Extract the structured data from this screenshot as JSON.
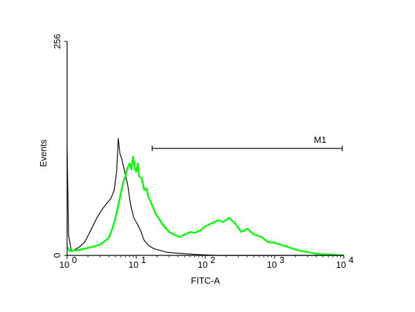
{
  "chart_data": {
    "type": "line",
    "title": "",
    "xlabel": "FITC-A",
    "ylabel": "Events",
    "x_scale": "log",
    "xlim": [
      1,
      10000
    ],
    "ylim": [
      0,
      256
    ],
    "x_ticks": [
      {
        "base": "10",
        "exp": "0",
        "value": 1
      },
      {
        "base": "10",
        "exp": "1",
        "value": 10
      },
      {
        "base": "10",
        "exp": "2",
        "value": 100
      },
      {
        "base": "10",
        "exp": "3",
        "value": 1000
      },
      {
        "base": "10",
        "exp": "4",
        "value": 10000
      }
    ],
    "y_ticks": [
      {
        "label": "0",
        "value": 0
      },
      {
        "label": "256",
        "value": 256
      }
    ],
    "grid": false,
    "colors": {
      "control": "#000000",
      "sample": "#00ff00",
      "axis": "#000000"
    },
    "marker": {
      "label": "M1",
      "x_start": 17,
      "x_end": 9500,
      "y": 128
    },
    "series": [
      {
        "color": "#000000",
        "x": [
          1,
          1.05,
          1.15,
          1.3,
          1.5,
          1.8,
          2.2,
          2.7,
          3.2,
          3.8,
          4.3,
          4.8,
          5.2,
          5.5,
          5.8,
          6.2,
          6.8,
          7.5,
          8.3,
          9.2,
          10.3,
          11.5,
          13,
          15,
          18,
          22,
          27,
          35,
          50,
          80,
          150,
          400,
          1000,
          10000
        ],
        "values": [
          130,
          25,
          5,
          7,
          10,
          16,
          30,
          45,
          55,
          63,
          68,
          78,
          100,
          140,
          122,
          115,
          100,
          85,
          60,
          45,
          38,
          30,
          18,
          12,
          8,
          6,
          4,
          3,
          2,
          1,
          0,
          0,
          0,
          0
        ]
      },
      {
        "color": "#00ff00",
        "x": [
          1,
          1.1,
          1.3,
          1.6,
          2,
          2.5,
          3,
          3.5,
          4,
          4.5,
          5,
          5.5,
          6,
          6.5,
          7,
          7.5,
          8,
          8.5,
          9,
          9.5,
          10,
          10.5,
          11,
          12,
          13,
          14,
          15,
          17,
          19,
          22,
          25,
          30,
          35,
          42,
          50,
          60,
          70,
          85,
          100,
          120,
          150,
          180,
          220,
          270,
          330,
          400,
          500,
          650,
          800,
          1000,
          1300,
          1700,
          2200,
          3000,
          4000,
          6000,
          10000
        ],
        "values": [
          10,
          5,
          6,
          7,
          9,
          11,
          13,
          17,
          21,
          32,
          45,
          60,
          75,
          88,
          95,
          105,
          110,
          103,
          118,
          105,
          100,
          110,
          95,
          92,
          78,
          80,
          70,
          60,
          50,
          42,
          35,
          28,
          25,
          22,
          25,
          28,
          27,
          30,
          35,
          38,
          42,
          40,
          45,
          38,
          28,
          32,
          25,
          22,
          16,
          15,
          12,
          9,
          6,
          4,
          2,
          1,
          0
        ]
      }
    ]
  }
}
